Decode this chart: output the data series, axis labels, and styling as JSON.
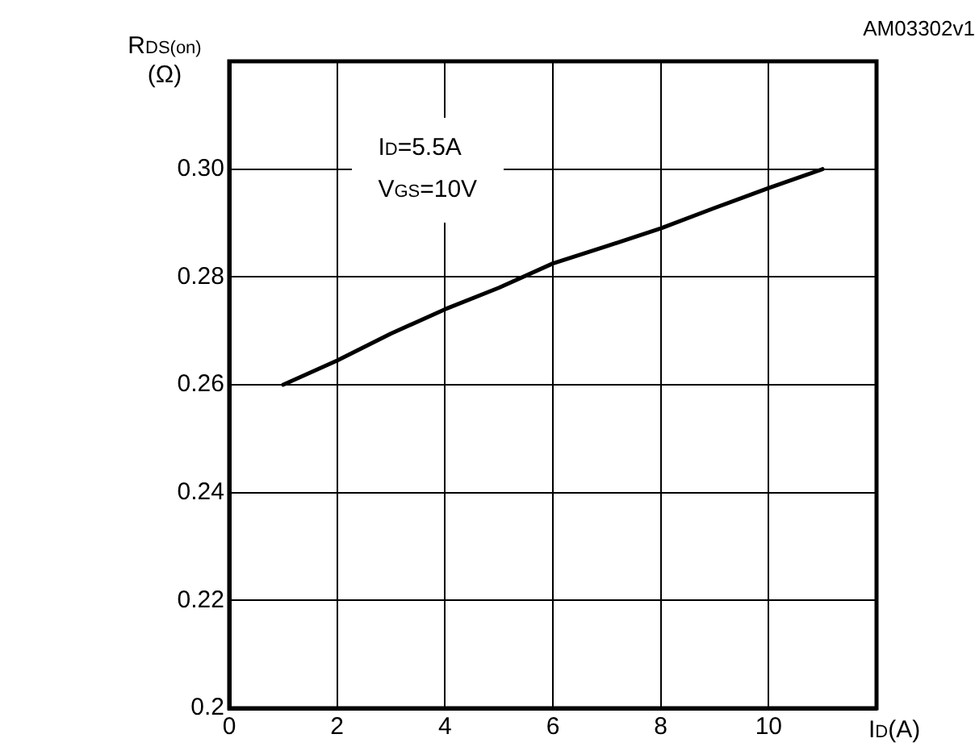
{
  "chart_data": {
    "type": "line",
    "xlabel": "I$_{D}$(A)",
    "ylabel": "R$_{DS(on)}$ (Ω)",
    "annotations": [
      "I$_{D}$=5.5A",
      "V$_{GS}$=10V",
      "AM03302v1"
    ],
    "x": [
      1,
      2,
      3,
      4,
      5,
      6,
      7,
      8,
      9,
      10,
      11
    ],
    "series": [
      {
        "color": "#000000",
        "values": [
          0.26,
          0.2645,
          0.2695,
          0.274,
          0.278,
          0.2825,
          0.2857,
          0.289,
          0.2928,
          0.2965,
          0.3
        ]
      }
    ],
    "xlim": [
      0,
      12
    ],
    "xticks": [
      0,
      2,
      4,
      6,
      8,
      10,
      {
        "value": 12,
        "label": null
      }
    ],
    "ylim": [
      0.2,
      0.32
    ],
    "yticks": [
      0.2,
      {
        "value": 0.22,
        "label": "0.22"
      },
      {
        "value": 0.24,
        "label": "0.24"
      },
      {
        "value": 0.26,
        "label": "0.26"
      },
      {
        "value": 0.28,
        "label": "0.28"
      },
      {
        "value": 0.3,
        "label": "0.30"
      },
      {
        "value": 0.32,
        "label": null
      }
    ],
    "grid": true,
    "legend": false,
    "marker": "none",
    "line_style": "solid"
  }
}
